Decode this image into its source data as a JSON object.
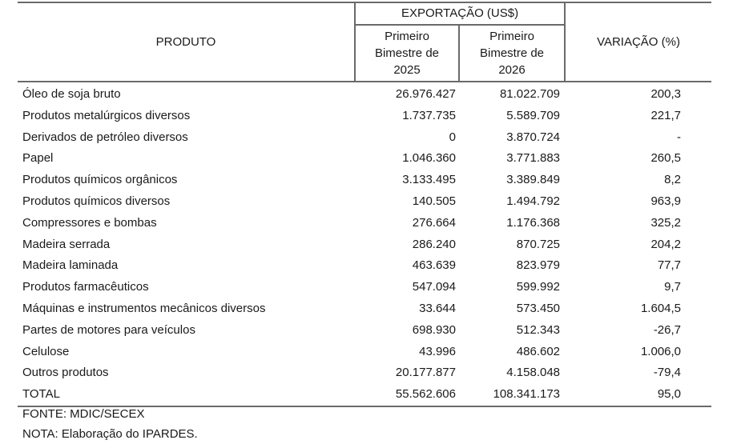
{
  "table": {
    "headers": {
      "produto": "PRODUTO",
      "exportacao": "EXPORTAÇÃO (US$)",
      "period_2025": [
        "Primeiro",
        "Bimestre de",
        "2025"
      ],
      "period_2026": [
        "Primeiro",
        "Bimestre de",
        "2026"
      ],
      "variacao": "VARIAÇÃO (%)"
    },
    "rows": [
      {
        "produto": "Óleo de soja bruto",
        "v2025": "26.976.427",
        "v2026": "81.022.709",
        "variacao": "200,3"
      },
      {
        "produto": "Produtos metalúrgicos diversos",
        "v2025": "1.737.735",
        "v2026": "5.589.709",
        "variacao": "221,7"
      },
      {
        "produto": "Derivados de petróleo diversos",
        "v2025": "0",
        "v2026": "3.870.724",
        "variacao": "-"
      },
      {
        "produto": "Papel",
        "v2025": "1.046.360",
        "v2026": "3.771.883",
        "variacao": "260,5"
      },
      {
        "produto": "Produtos químicos orgânicos",
        "v2025": "3.133.495",
        "v2026": "3.389.849",
        "variacao": "8,2"
      },
      {
        "produto": "Produtos químicos diversos",
        "v2025": "140.505",
        "v2026": "1.494.792",
        "variacao": "963,9"
      },
      {
        "produto": "Compressores e bombas",
        "v2025": "276.664",
        "v2026": "1.176.368",
        "variacao": "325,2"
      },
      {
        "produto": "Madeira serrada",
        "v2025": "286.240",
        "v2026": "870.725",
        "variacao": "204,2"
      },
      {
        "produto": "Madeira laminada",
        "v2025": "463.639",
        "v2026": "823.979",
        "variacao": "77,7"
      },
      {
        "produto": "Produtos farmacêuticos",
        "v2025": "547.094",
        "v2026": "599.992",
        "variacao": "9,7"
      },
      {
        "produto": "Máquinas e instrumentos mecânicos diversos",
        "v2025": "33.644",
        "v2026": "573.450",
        "variacao": "1.604,5"
      },
      {
        "produto": "Partes de motores para veículos",
        "v2025": "698.930",
        "v2026": "512.343",
        "variacao": "-26,7"
      },
      {
        "produto": "Celulose",
        "v2025": "43.996",
        "v2026": "486.602",
        "variacao": "1.006,0"
      },
      {
        "produto": "Outros produtos",
        "v2025": "20.177.877",
        "v2026": "4.158.048",
        "variacao": "-79,4"
      }
    ],
    "total": {
      "produto": "TOTAL",
      "v2025": "55.562.606",
      "v2026": "108.341.173",
      "variacao": "95,0"
    }
  },
  "notes": {
    "fonte": "FONTE: MDIC/SECEX",
    "nota": "NOTA: Elaboração do IPARDES."
  }
}
